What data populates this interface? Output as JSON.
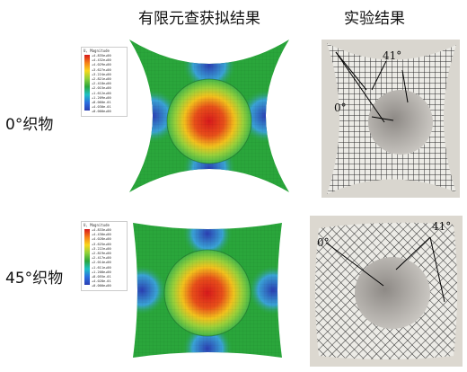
{
  "headers": {
    "simulation": "有限元查获拟结果",
    "experiment": "实验结果"
  },
  "rows": [
    {
      "label": "0°织物",
      "legend": {
        "title": "U, Magnitude",
        "values": [
          "+4.835e+00",
          "+4.432e+00",
          "+4.029e+00",
          "+3.627e+00",
          "+3.224e+00",
          "+2.821e+00",
          "+2.418e+00",
          "+2.015e+00",
          "+1.612e+00",
          "+1.209e+00",
          "+8.060e-01",
          "+4.030e-01",
          "+0.000e+00"
        ]
      },
      "angles": [
        "41°",
        "0°"
      ]
    },
    {
      "label": "45°织物",
      "legend": {
        "title": "U, Magnitude",
        "values": [
          "+4.833e+00",
          "+4.430e+00",
          "+4.028e+00",
          "+3.625e+00",
          "+3.222e+00",
          "+2.819e+00",
          "+2.417e+00",
          "+2.014e+00",
          "+1.611e+00",
          "+1.208e+00",
          "+8.055e-01",
          "+4.028e-01",
          "+0.000e+00"
        ]
      },
      "angles": [
        "41°",
        "0°"
      ]
    }
  ],
  "colors": {
    "red": "#d7191c",
    "green": "#2aa63b",
    "blue": "#2b3fb3"
  }
}
